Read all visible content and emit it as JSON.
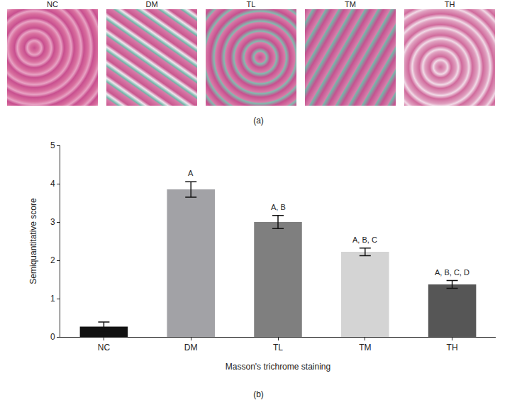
{
  "panels": {
    "labels": [
      "NC",
      "DM",
      "TL",
      "TM",
      "TH"
    ],
    "panel_label": "(a)"
  },
  "chart_data": {
    "type": "bar",
    "categories": [
      "NC",
      "DM",
      "TL",
      "TM",
      "TH"
    ],
    "values": [
      0.27,
      3.85,
      3.0,
      2.22,
      1.37
    ],
    "errors": [
      0.12,
      0.2,
      0.17,
      0.1,
      0.1
    ],
    "colors": [
      "#111111",
      "#a2a2a6",
      "#7f7f7f",
      "#d4d4d4",
      "#565656"
    ],
    "annotations": [
      {
        "category": "DM",
        "text": "A"
      },
      {
        "category": "TL",
        "text": "A, B"
      },
      {
        "category": "TM",
        "text": "A, B, C"
      },
      {
        "category": "TH",
        "text": "A, B, C, D"
      }
    ],
    "x_label": "Masson's trichrome staining",
    "y_label": "Semiquantitative score",
    "ylim": [
      0,
      5
    ],
    "yticks": [
      0,
      1,
      2,
      3,
      4,
      5
    ],
    "grid": false,
    "panel_label": "(b)"
  }
}
